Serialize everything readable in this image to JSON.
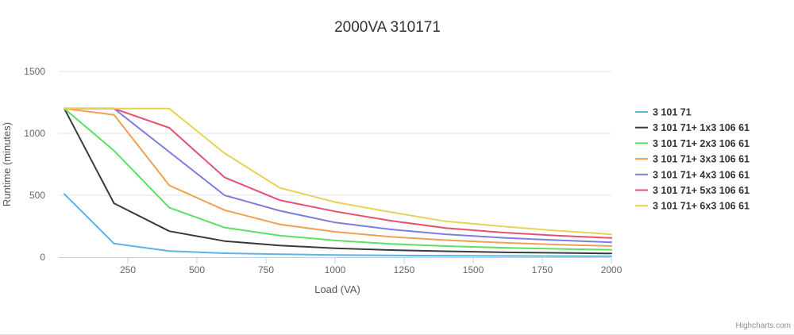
{
  "chart_data": {
    "type": "line",
    "title": "2000VA 310171",
    "xlabel": "Load (VA)",
    "ylabel": "Runtime (minutes)",
    "xlim": [
      0,
      2000
    ],
    "ylim": [
      0,
      1500
    ],
    "xticks": [
      250,
      500,
      750,
      1000,
      1250,
      1500,
      1750,
      2000
    ],
    "yticks": [
      0,
      500,
      1000,
      1500
    ],
    "grid": true,
    "legend_position": "right",
    "x": [
      20,
      200,
      400,
      600,
      800,
      1000,
      1200,
      1400,
      1600,
      1800,
      2000
    ],
    "series": [
      {
        "name": "3 101 71",
        "color": "#5ab4e5",
        "values": [
          510,
          110,
          50,
          32,
          24,
          18,
          14,
          12,
          10,
          9,
          8
        ]
      },
      {
        "name": "3 101 71+ 1x3 106 61",
        "color": "#3a3a3a",
        "values": [
          1200,
          435,
          210,
          130,
          95,
          72,
          58,
          48,
          40,
          35,
          30
        ]
      },
      {
        "name": "3 101 71+ 2x3 106 61",
        "color": "#5be065",
        "values": [
          1200,
          860,
          400,
          240,
          175,
          135,
          108,
          90,
          77,
          67,
          60
        ]
      },
      {
        "name": "3 101 71+ 3x3 106 61",
        "color": "#f0a050",
        "values": [
          1200,
          1150,
          580,
          380,
          265,
          205,
          165,
          138,
          118,
          102,
          90
        ]
      },
      {
        "name": "3 101 71+ 4x3 106 61",
        "color": "#7c7de0",
        "values": [
          1200,
          1200,
          850,
          500,
          375,
          280,
          225,
          185,
          158,
          138,
          120
        ]
      },
      {
        "name": "3 101 71+ 5x3 106 61",
        "color": "#e8506e",
        "values": [
          1200,
          1200,
          1045,
          645,
          460,
          370,
          295,
          235,
          200,
          175,
          155
        ]
      },
      {
        "name": "3 101 71+ 6x3 106 61",
        "color": "#e5d35a",
        "values": [
          1200,
          1200,
          1200,
          840,
          560,
          445,
          365,
          290,
          250,
          215,
          185
        ]
      }
    ]
  },
  "credit": "Highcharts.com"
}
